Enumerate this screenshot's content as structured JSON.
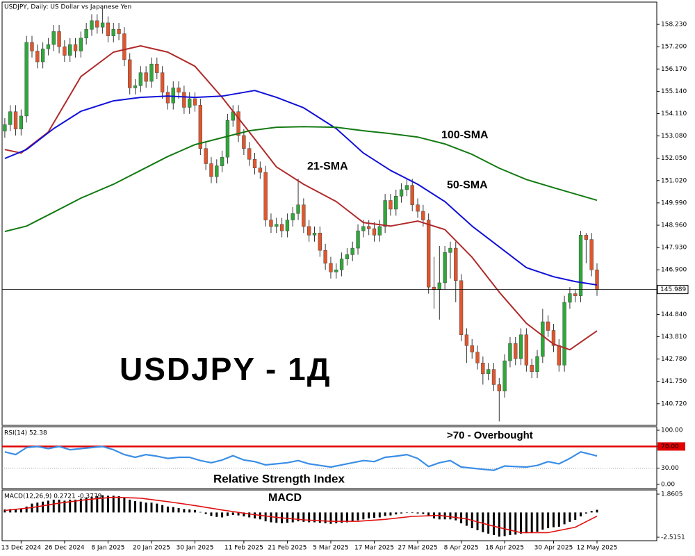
{
  "chart_data": [
    {
      "type": "candlestick",
      "title": "USDJPY, Daily:  US Dollar vs Japanese Yen",
      "watermark": "USDJPY - 1Д",
      "up_color": "#2fa83a",
      "down_color": "#e2562c",
      "open": [
        153.3,
        153.6,
        154.2,
        153.4,
        154.0,
        157.4,
        157.0,
        156.5,
        157.1,
        157.3,
        157.9,
        157.2,
        156.8,
        157.3,
        157.0,
        157.6,
        158.0,
        158.4,
        158.1,
        158.3,
        157.7,
        158.0,
        157.8,
        156.6,
        155.3,
        155.4,
        156.0,
        155.6,
        156.4,
        156.0,
        155.1,
        154.6,
        155.3,
        155.1,
        154.4,
        154.8,
        154.5,
        152.5,
        151.8,
        151.2,
        151.7,
        152.1,
        153.8,
        154.2,
        153.1,
        152.5,
        152.0,
        151.6,
        151.4,
        149.2,
        148.9,
        149.0,
        148.7,
        149.2,
        149.5,
        149.9,
        148.9,
        148.5,
        148.6,
        147.8,
        147.2,
        146.8,
        146.9,
        147.4,
        147.6,
        147.9,
        148.7,
        148.9,
        148.8,
        148.5,
        148.9,
        150.1,
        149.7,
        150.3,
        150.6,
        150.8,
        149.9,
        149.6,
        149.2,
        146.1,
        146.0,
        146.3,
        147.7,
        147.9,
        146.4,
        143.9,
        143.4,
        143.1,
        142.6,
        142.1,
        142.3,
        141.6,
        141.3,
        142.7,
        143.5,
        142.8,
        143.9,
        142.5,
        142.2,
        142.9,
        144.5,
        144.1,
        143.4,
        142.5,
        145.4,
        145.8,
        145.7,
        148.5,
        148.3,
        146.9
      ],
      "high": [
        153.9,
        154.5,
        154.5,
        154.3,
        157.7,
        157.7,
        157.3,
        157.4,
        157.6,
        158.2,
        158.2,
        157.5,
        157.6,
        157.6,
        157.9,
        158.3,
        158.7,
        158.7,
        159.0,
        158.6,
        158.3,
        158.3,
        158.1,
        156.9,
        155.7,
        156.3,
        156.3,
        156.7,
        156.7,
        156.3,
        155.4,
        155.6,
        155.6,
        155.4,
        155.1,
        155.1,
        154.8,
        152.8,
        152.1,
        152.0,
        152.4,
        154.1,
        154.5,
        154.5,
        153.4,
        152.8,
        152.3,
        151.9,
        151.7,
        149.5,
        149.3,
        149.3,
        149.5,
        149.8,
        151.1,
        150.2,
        149.2,
        148.9,
        148.9,
        148.1,
        147.5,
        147.2,
        147.7,
        147.9,
        148.2,
        149.0,
        149.2,
        149.2,
        149.1,
        149.2,
        150.4,
        150.4,
        150.6,
        150.9,
        151.1,
        151.1,
        150.2,
        149.9,
        149.5,
        147.5,
        148.0,
        148.0,
        148.2,
        148.2,
        146.7,
        144.2,
        143.7,
        143.4,
        142.9,
        142.6,
        142.6,
        141.9,
        143.0,
        143.8,
        143.8,
        144.2,
        144.2,
        142.8,
        143.2,
        145.1,
        144.8,
        144.4,
        143.7,
        145.7,
        146.1,
        146.0,
        148.7,
        148.6,
        148.6,
        147.2
      ],
      "low": [
        153.0,
        153.3,
        153.1,
        153.1,
        153.7,
        156.7,
        156.2,
        156.2,
        156.8,
        157.0,
        156.9,
        156.5,
        156.5,
        156.7,
        156.7,
        157.3,
        157.7,
        157.8,
        157.8,
        157.4,
        157.4,
        157.5,
        156.3,
        155.0,
        155.0,
        155.1,
        155.3,
        155.3,
        155.7,
        154.8,
        154.3,
        154.3,
        154.8,
        154.1,
        154.1,
        154.2,
        152.2,
        151.5,
        150.9,
        150.9,
        151.4,
        151.8,
        153.5,
        152.8,
        152.2,
        151.7,
        151.3,
        151.1,
        148.9,
        148.6,
        148.6,
        148.4,
        148.4,
        148.9,
        149.2,
        148.6,
        148.2,
        148.2,
        147.5,
        146.9,
        146.5,
        146.5,
        146.6,
        147.1,
        147.3,
        147.6,
        148.4,
        148.5,
        148.2,
        148.2,
        148.6,
        149.4,
        149.4,
        150.0,
        150.3,
        149.6,
        149.3,
        148.9,
        145.8,
        145.1,
        144.6,
        146.0,
        146.5,
        145.4,
        143.6,
        142.6,
        142.8,
        142.3,
        141.6,
        141.8,
        141.3,
        139.9,
        141.0,
        142.4,
        142.5,
        142.5,
        142.2,
        141.9,
        141.9,
        142.6,
        143.8,
        143.1,
        142.2,
        142.2,
        145.1,
        145.4,
        145.4,
        147.2,
        146.6,
        145.7
      ],
      "close": [
        153.6,
        154.2,
        153.4,
        154.0,
        157.4,
        157.0,
        156.5,
        157.1,
        157.3,
        157.9,
        157.2,
        156.8,
        157.3,
        157.0,
        157.6,
        158.0,
        158.4,
        158.1,
        158.3,
        157.7,
        158.0,
        157.8,
        156.6,
        155.3,
        155.4,
        156.0,
        155.6,
        156.4,
        156.0,
        155.1,
        154.6,
        155.3,
        155.1,
        154.4,
        154.8,
        154.5,
        152.5,
        151.8,
        151.2,
        151.7,
        152.1,
        153.8,
        154.2,
        153.1,
        152.5,
        152.0,
        151.6,
        151.4,
        149.2,
        148.9,
        149.0,
        148.7,
        149.2,
        149.5,
        149.9,
        148.9,
        148.5,
        148.6,
        147.8,
        147.2,
        146.8,
        146.9,
        147.4,
        147.6,
        147.9,
        148.7,
        148.9,
        148.8,
        148.5,
        148.9,
        150.1,
        149.7,
        150.3,
        150.6,
        150.8,
        149.9,
        149.6,
        149.2,
        146.1,
        146.0,
        146.3,
        147.7,
        147.9,
        146.4,
        143.9,
        143.4,
        143.1,
        142.6,
        142.1,
        142.3,
        141.6,
        141.3,
        142.7,
        143.5,
        142.8,
        143.9,
        142.5,
        142.2,
        142.9,
        144.5,
        144.1,
        143.4,
        142.5,
        145.4,
        145.8,
        145.7,
        148.5,
        148.3,
        146.9,
        145.99
      ],
      "series": [
        {
          "name": "21-SMA",
          "color": "#b02a2a",
          "x": [
            0,
            3,
            8,
            14,
            20,
            25,
            30,
            35,
            40,
            45,
            50,
            55,
            61,
            66,
            71,
            76,
            81,
            86,
            91,
            96,
            101,
            104,
            109
          ],
          "values": [
            152.45,
            152.29,
            153.26,
            155.82,
            156.95,
            157.24,
            156.95,
            156.3,
            154.86,
            153.26,
            151.65,
            150.85,
            150.05,
            149.08,
            148.92,
            149.15,
            148.76,
            147.48,
            145.87,
            144.43,
            143.47,
            143.21,
            144.08
          ]
        },
        {
          "name": "50-SMA",
          "color": "#1010d8",
          "x": [
            0,
            4,
            9,
            14,
            20,
            25,
            30,
            35,
            40,
            46,
            50,
            55,
            61,
            66,
            71,
            76,
            81,
            86,
            91,
            96,
            101,
            105,
            109
          ],
          "values": [
            152.04,
            152.45,
            153.42,
            154.22,
            154.7,
            154.86,
            154.92,
            154.86,
            154.92,
            155.18,
            154.86,
            154.38,
            153.42,
            152.29,
            151.49,
            150.85,
            150.05,
            148.92,
            147.96,
            147.0,
            146.58,
            146.36,
            146.2
          ]
        },
        {
          "name": "100-SMA",
          "color": "#137a13",
          "x": [
            0,
            4,
            9,
            14,
            20,
            25,
            30,
            35,
            40,
            45,
            50,
            55,
            61,
            66,
            71,
            76,
            81,
            86,
            91,
            96,
            101,
            109
          ],
          "values": [
            148.67,
            148.92,
            149.56,
            150.21,
            150.85,
            151.49,
            152.13,
            152.68,
            153.0,
            153.32,
            153.48,
            153.51,
            153.48,
            153.32,
            153.19,
            153.03,
            152.71,
            152.23,
            151.59,
            151.07,
            150.69,
            150.11
          ]
        }
      ],
      "last_price": 145.989,
      "xlim": [
        -0.5,
        120
      ],
      "ylim": [
        139.72,
        159.26
      ],
      "yticks": [
        {
          "value": 158.23,
          "label": "158.230"
        },
        {
          "value": 157.2,
          "label": "157.200"
        },
        {
          "value": 156.17,
          "label": "156.170"
        },
        {
          "value": 155.14,
          "label": "155.140"
        },
        {
          "value": 154.11,
          "label": "154.110"
        },
        {
          "value": 153.08,
          "label": "153.080"
        },
        {
          "value": 152.05,
          "label": "152.050"
        },
        {
          "value": 151.02,
          "label": "151.020"
        },
        {
          "value": 149.99,
          "label": "149.990"
        },
        {
          "value": 148.96,
          "label": "148.960"
        },
        {
          "value": 147.93,
          "label": "147.930"
        },
        {
          "value": 146.9,
          "label": "146.900"
        },
        {
          "value": 144.84,
          "label": "144.840"
        },
        {
          "value": 143.81,
          "label": "143.810"
        },
        {
          "value": 142.78,
          "label": "142.780"
        },
        {
          "value": 141.75,
          "label": "141.750"
        },
        {
          "value": 140.72,
          "label": "140.720"
        }
      ]
    },
    {
      "type": "line",
      "title": "RSI(14) 52.38",
      "annotations": [
        ">70 - Overbought",
        "Relative Strength Index"
      ],
      "color": "#3a8ee6",
      "x": [
        0,
        2,
        4,
        6,
        8,
        10,
        12,
        14,
        16,
        18,
        20,
        22,
        24,
        26,
        28,
        30,
        32,
        34,
        36,
        38,
        40,
        42,
        44,
        46,
        48,
        50,
        52,
        54,
        56,
        58,
        60,
        62,
        64,
        66,
        68,
        70,
        72,
        74,
        76,
        78,
        80,
        82,
        84,
        86,
        88,
        90,
        92,
        94,
        96,
        98,
        100,
        102,
        104,
        106,
        108,
        109
      ],
      "values": [
        60,
        55,
        68,
        70,
        66,
        70,
        64,
        66,
        68,
        70,
        64,
        55,
        50,
        55,
        52,
        48,
        50,
        50,
        44,
        40,
        45,
        53,
        45,
        42,
        36,
        38,
        40,
        44,
        38,
        35,
        32,
        36,
        40,
        44,
        42,
        50,
        52,
        55,
        48,
        33,
        40,
        44,
        32,
        30,
        28,
        26,
        34,
        33,
        32,
        35,
        42,
        38,
        48,
        60,
        55,
        52.38
      ],
      "levels": [
        {
          "value": 70,
          "color": "#e00000",
          "style": "solid"
        },
        {
          "value": 30,
          "color": "#9a9a9a",
          "style": "dotted"
        }
      ],
      "xlim": [
        -0.5,
        120
      ],
      "ylim": [
        -7.7,
        106.4
      ],
      "yticks": [
        {
          "value": 100,
          "label": "100.00"
        },
        {
          "value": 70,
          "label": "70.00"
        },
        {
          "value": 30,
          "label": "30.00"
        },
        {
          "value": 0,
          "label": "0.00"
        }
      ]
    },
    {
      "type": "macd",
      "title": "MACD(12,26,9) 0.2721 -0.3779",
      "annotations": [
        "MACD"
      ],
      "histogram": {
        "color": "#000000",
        "values": [
          0.3,
          0.35,
          0.3,
          0.35,
          0.6,
          0.9,
          1.0,
          1.1,
          1.2,
          1.3,
          1.3,
          1.2,
          1.3,
          1.3,
          1.4,
          1.5,
          1.6,
          1.65,
          1.75,
          1.7,
          1.7,
          1.65,
          1.5,
          1.3,
          1.15,
          1.1,
          1.0,
          1.0,
          0.9,
          0.75,
          0.6,
          0.55,
          0.45,
          0.35,
          0.3,
          0.25,
          0.05,
          -0.15,
          -0.35,
          -0.45,
          -0.5,
          -0.35,
          -0.25,
          -0.3,
          -0.4,
          -0.5,
          -0.6,
          -0.7,
          -0.9,
          -1.0,
          -1.05,
          -1.1,
          -1.05,
          -1.0,
          -0.9,
          -0.95,
          -1.0,
          -1.0,
          -1.05,
          -1.1,
          -1.15,
          -1.1,
          -1.05,
          -1.0,
          -0.9,
          -0.8,
          -0.7,
          -0.6,
          -0.55,
          -0.5,
          -0.35,
          -0.3,
          -0.2,
          -0.1,
          0.0,
          -0.05,
          -0.1,
          -0.15,
          -0.4,
          -0.6,
          -0.7,
          -0.7,
          -0.7,
          -0.8,
          -1.1,
          -1.35,
          -1.6,
          -1.8,
          -2.0,
          -2.15,
          -2.3,
          -2.45,
          -2.4,
          -2.3,
          -2.25,
          -2.15,
          -2.1,
          -2.05,
          -1.95,
          -1.75,
          -1.6,
          -1.5,
          -1.45,
          -1.2,
          -0.95,
          -0.75,
          -0.4,
          -0.1,
          0.15,
          0.2721
        ]
      },
      "signal": {
        "color": "#e01010",
        "x": [
          0,
          5,
          10,
          15,
          20,
          25,
          30,
          35,
          40,
          45,
          50,
          55,
          60,
          65,
          70,
          75,
          80,
          85,
          90,
          95,
          100,
          105,
          109
        ],
        "values": [
          0.2,
          0.5,
          0.95,
          1.3,
          1.55,
          1.45,
          1.1,
          0.7,
          0.25,
          -0.15,
          -0.5,
          -0.75,
          -0.9,
          -0.9,
          -0.7,
          -0.4,
          -0.3,
          -0.65,
          -1.4,
          -2.05,
          -2.05,
          -1.5,
          -0.3779
        ]
      },
      "xlim": [
        -0.5,
        120
      ],
      "ylim": [
        -2.868,
        2.284
      ],
      "yticks": [
        1.8605,
        -2.5151
      ],
      "xticks": [
        {
          "value": 3,
          "label": "13 Dec 2024"
        },
        {
          "value": 11,
          "label": "26 Dec 2024"
        },
        {
          "value": 19,
          "label": "8 Jan 2025"
        },
        {
          "value": 27,
          "label": "20 Jan 2025"
        },
        {
          "value": 35,
          "label": "30 Jan 2025"
        },
        {
          "value": 44,
          "label": "11 Feb 2025"
        },
        {
          "value": 52,
          "label": "21 Feb 2025"
        },
        {
          "value": 60,
          "label": "5 Mar 2025"
        },
        {
          "value": 68,
          "label": "17 Mar 2025"
        },
        {
          "value": 76,
          "label": "27 Mar 2025"
        },
        {
          "value": 84,
          "label": "8 Apr 2025"
        },
        {
          "value": 92,
          "label": "18 Apr 2025"
        },
        {
          "value": 101,
          "label": "30 Apr 2025"
        },
        {
          "value": 109,
          "label": "12 May 2025"
        }
      ]
    }
  ]
}
